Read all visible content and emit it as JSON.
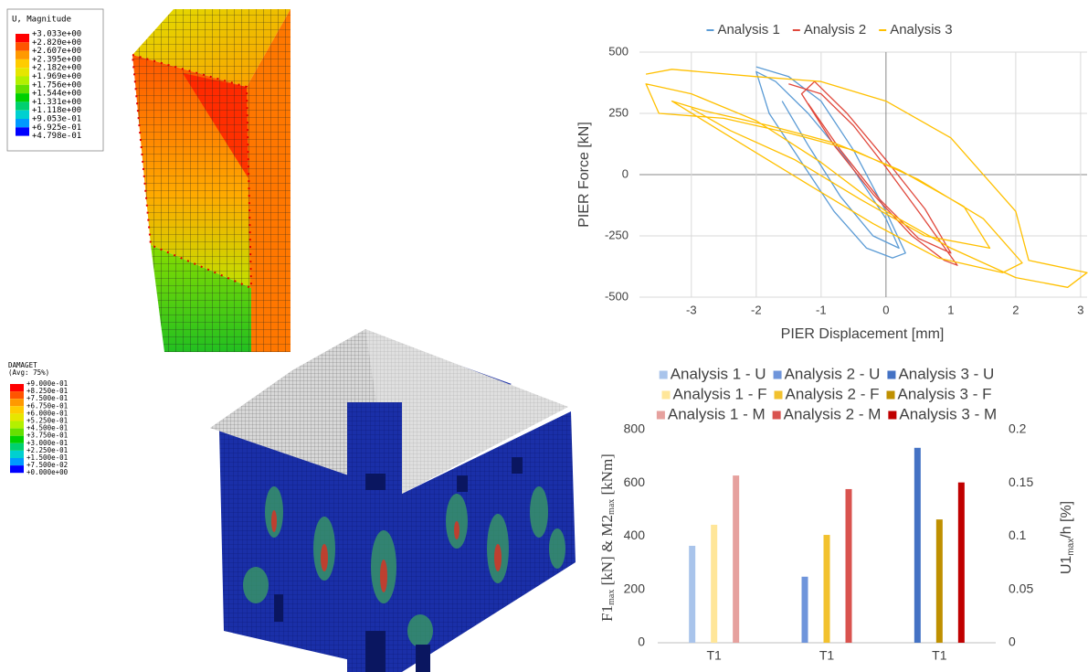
{
  "top_left": {
    "legend_title": "U, Magnitude",
    "legend_labels": [
      "+3.033e+00",
      "+2.820e+00",
      "+2.607e+00",
      "+2.395e+00",
      "+2.182e+00",
      "+1.969e+00",
      "+1.756e+00",
      "+1.544e+00",
      "+1.331e+00",
      "+1.118e+00",
      "+9.053e-01",
      "+6.925e-01",
      "+4.798e-01"
    ],
    "colors": [
      "#ff0000",
      "#ff5500",
      "#ff9900",
      "#ffcc00",
      "#e6e600",
      "#b3f000",
      "#66e000",
      "#00d000",
      "#00d070",
      "#00d0d0",
      "#0099ff",
      "#0000ff"
    ]
  },
  "bottom_left": {
    "legend_title": "DAMAGET",
    "legend_subtitle": "(Avg: 75%)",
    "legend_labels": [
      "+9.000e-01",
      "+8.250e-01",
      "+7.500e-01",
      "+6.750e-01",
      "+6.000e-01",
      "+5.250e-01",
      "+4.500e-01",
      "+3.750e-01",
      "+3.000e-01",
      "+2.250e-01",
      "+1.500e-01",
      "+7.500e-02",
      "+0.000e+00"
    ],
    "colors": [
      "#ff0000",
      "#ff5500",
      "#ff9900",
      "#ffcc00",
      "#e6e600",
      "#b3f000",
      "#66e000",
      "#00d000",
      "#00d070",
      "#00d0d0",
      "#0099ff",
      "#0000ff"
    ]
  },
  "chart_data": [
    {
      "type": "line",
      "x_label": "PIER Displacement [mm]",
      "y_label": "PIER Force [kN]",
      "xlim": [
        -3.8,
        3.1
      ],
      "xticks": [
        -3,
        -2,
        -1,
        0,
        1,
        2,
        3
      ],
      "ylim": [
        -500,
        500
      ],
      "yticks": [
        -500,
        -250,
        0,
        250,
        500
      ],
      "grid": true,
      "series": [
        {
          "name": "Analysis 1",
          "color": "#5b9bd5",
          "x": [
            -2,
            -1.5,
            -1,
            -0.5,
            0,
            0.3,
            0.1,
            -0.3,
            -0.8,
            -1.3,
            -1.8,
            -2,
            -1.7,
            -1.2,
            -0.6,
            0,
            0.2,
            -0.2,
            -0.7,
            -1.2,
            -1.6
          ],
          "values": [
            440,
            400,
            300,
            100,
            -150,
            -320,
            -340,
            -300,
            -150,
            50,
            250,
            420,
            380,
            250,
            60,
            -180,
            -300,
            -250,
            -90,
            120,
            300
          ]
        },
        {
          "name": "Analysis 2",
          "color": "#e0483c",
          "x": [
            -1.5,
            -1,
            -0.5,
            0,
            0.5,
            1.1,
            0.9,
            0.4,
            -0.2,
            -0.8,
            -1.3,
            -1.1,
            -0.6,
            0,
            0.6,
            1.0,
            0.5,
            -0.1,
            -0.7,
            -1.2
          ],
          "values": [
            370,
            330,
            200,
            30,
            -150,
            -370,
            -350,
            -250,
            -80,
            120,
            330,
            380,
            250,
            60,
            -140,
            -320,
            -260,
            -100,
            100,
            290
          ]
        },
        {
          "name": "Analysis 3",
          "color": "#ffc000",
          "x": [
            -3.7,
            -3.3,
            -2,
            -1,
            0,
            1,
            2,
            2.2,
            3.1,
            2.8,
            2,
            1,
            0,
            -1,
            -2,
            -3,
            -3.7,
            -3.5,
            -2.5,
            -1.5,
            -0.5,
            0.5,
            1.5,
            2.1,
            1.8,
            0.8,
            -0.2,
            -1.2,
            -2.5,
            -3.3,
            -2.8,
            -1.8,
            -0.8,
            0.2,
            1.2,
            1.6,
            0.6,
            -0.4,
            -1.4,
            -2.4,
            -3.0
          ],
          "values": [
            410,
            430,
            400,
            380,
            300,
            150,
            -150,
            -350,
            -400,
            -460,
            -420,
            -300,
            -150,
            50,
            220,
            330,
            370,
            250,
            230,
            170,
            100,
            -20,
            -180,
            -360,
            -400,
            -340,
            -200,
            -40,
            170,
            300,
            260,
            200,
            130,
            20,
            -130,
            -300,
            -250,
            -100,
            60,
            180,
            270
          ]
        }
      ]
    },
    {
      "type": "bar",
      "y_label": [
        "F1",
        "max",
        " [kN]  &  M2",
        "max",
        " [kNm]"
      ],
      "y2_label": [
        "U1",
        "max",
        "/h  [%]"
      ],
      "categories": [
        "T1",
        "T1",
        "T1"
      ],
      "ylim": [
        0,
        800
      ],
      "yticks": [
        0,
        200,
        400,
        600,
        800
      ],
      "y2lim": [
        0,
        0.2
      ],
      "y2ticks": [
        0,
        0.05,
        0.1,
        0.15,
        0.2
      ],
      "grid": false,
      "series": [
        {
          "name": "Analysis 1 - U",
          "color": "#a9c4eb",
          "axis": "y2",
          "values": [
            0.091,
            null,
            null
          ]
        },
        {
          "name": "Analysis 2 - U",
          "color": "#6f95db",
          "axis": "y2",
          "values": [
            null,
            0.062,
            null
          ]
        },
        {
          "name": "Analysis 3 - U",
          "color": "#4472c4",
          "axis": "y2",
          "values": [
            null,
            null,
            0.183
          ]
        },
        {
          "name": "Analysis 1 - F",
          "color": "#ffe699",
          "values": [
            443,
            null,
            null
          ]
        },
        {
          "name": "Analysis 2 - F",
          "color": "#f2c12e",
          "values": [
            null,
            405,
            null
          ]
        },
        {
          "name": "Analysis 3 - F",
          "color": "#bf9000",
          "values": [
            null,
            null,
            463
          ]
        },
        {
          "name": "Analysis 1 - M",
          "color": "#e6a19e",
          "values": [
            628,
            null,
            null
          ]
        },
        {
          "name": "Analysis 2 - M",
          "color": "#d9534f",
          "values": [
            null,
            577,
            null
          ]
        },
        {
          "name": "Analysis 3 - M",
          "color": "#c00000",
          "values": [
            null,
            null,
            602
          ]
        }
      ]
    }
  ]
}
